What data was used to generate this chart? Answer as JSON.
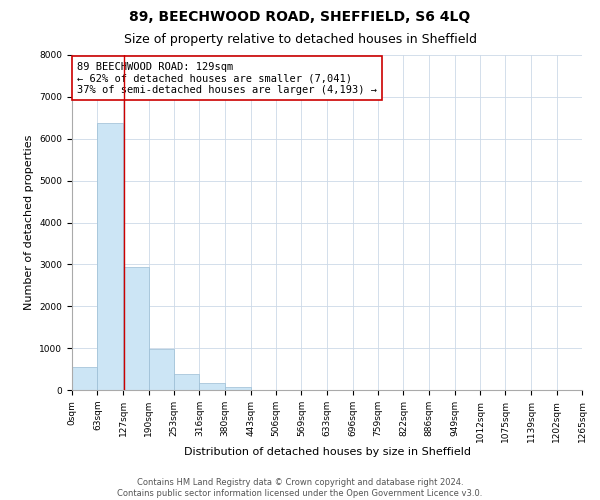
{
  "title": "89, BEECHWOOD ROAD, SHEFFIELD, S6 4LQ",
  "subtitle": "Size of property relative to detached houses in Sheffield",
  "xlabel": "Distribution of detached houses by size in Sheffield",
  "ylabel": "Number of detached properties",
  "bar_edges": [
    0,
    63,
    127,
    190,
    253,
    316,
    380,
    443,
    506,
    569,
    633,
    696,
    759,
    822,
    886,
    949,
    1012,
    1075,
    1139,
    1202,
    1265
  ],
  "bar_heights": [
    560,
    6380,
    2940,
    990,
    380,
    165,
    80,
    0,
    0,
    0,
    0,
    0,
    0,
    0,
    0,
    0,
    0,
    0,
    0,
    0
  ],
  "bar_color": "#cce5f5",
  "bar_edge_color": "#9bbdd4",
  "vline_x": 129,
  "vline_color": "#cc0000",
  "annotation_box_text": "89 BEECHWOOD ROAD: 129sqm\n← 62% of detached houses are smaller (7,041)\n37% of semi-detached houses are larger (4,193) →",
  "annotation_box_color": "#cc0000",
  "ylim": [
    0,
    8000
  ],
  "yticks": [
    0,
    1000,
    2000,
    3000,
    4000,
    5000,
    6000,
    7000,
    8000
  ],
  "tick_labels": [
    "0sqm",
    "63sqm",
    "127sqm",
    "190sqm",
    "253sqm",
    "316sqm",
    "380sqm",
    "443sqm",
    "506sqm",
    "569sqm",
    "633sqm",
    "696sqm",
    "759sqm",
    "822sqm",
    "886sqm",
    "949sqm",
    "1012sqm",
    "1075sqm",
    "1139sqm",
    "1202sqm",
    "1265sqm"
  ],
  "footer_text": "Contains HM Land Registry data © Crown copyright and database right 2024.\nContains public sector information licensed under the Open Government Licence v3.0.",
  "bg_color": "#ffffff",
  "grid_color": "#ccd9e8",
  "title_fontsize": 10,
  "subtitle_fontsize": 9,
  "axis_label_fontsize": 8,
  "tick_fontsize": 6.5,
  "annotation_fontsize": 7.5,
  "footer_fontsize": 6
}
